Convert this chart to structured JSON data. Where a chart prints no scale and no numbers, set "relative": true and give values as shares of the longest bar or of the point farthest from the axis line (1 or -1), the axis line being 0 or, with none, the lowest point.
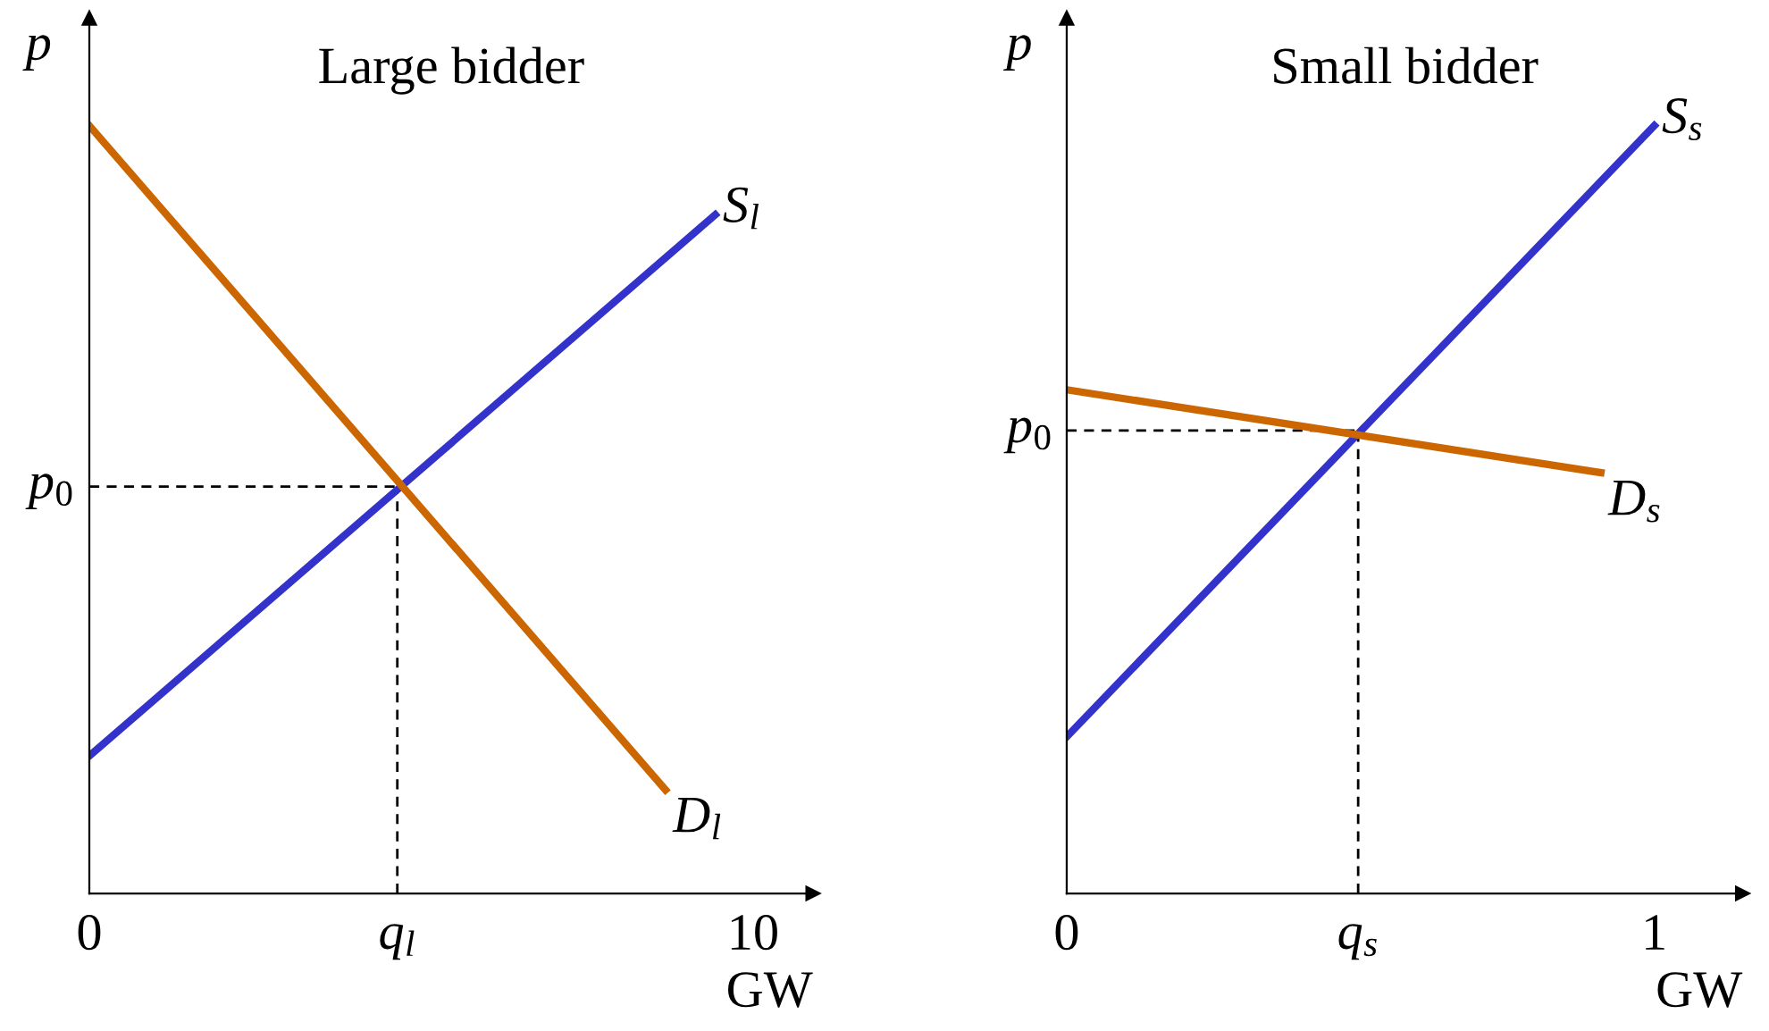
{
  "chart_data": [
    {
      "type": "line",
      "title": "Large bidder",
      "xlabel": "GW",
      "ylabel": "p",
      "relative": true,
      "xlim": [
        0,
        10.9
      ],
      "xticks": [
        0,
        {
          "value": 4.64,
          "label": "q$_{l}$"
        },
        10
      ],
      "series": [
        {
          "name": "S$_{l}$",
          "color": "#3333cc",
          "x": [
            0,
            9.43
          ],
          "values": [
            0.179,
            0.884
          ]
        },
        {
          "name": "D$_{l}$",
          "color": "#cc6600",
          "x": [
            0,
            8.68
          ],
          "values": [
            1,
            0.135
          ]
        }
      ],
      "ref_lines": [
        {
          "axis": "y",
          "value": 0.53,
          "label": "p$_{0}$",
          "line_style": "dashed",
          "color": "#000000"
        },
        {
          "axis": "x",
          "value": 4.64,
          "line_style": "dashed",
          "color": "#000000"
        }
      ]
    },
    {
      "type": "line",
      "title": "Small bidder",
      "xlabel": "GW",
      "ylabel": "p",
      "relative": true,
      "xlim": [
        0,
        1.15
      ],
      "xticks": [
        0,
        {
          "value": 0.496,
          "label": "q$_{s}$"
        },
        1
      ],
      "series": [
        {
          "name": "S$_{s}$",
          "color": "#3333cc",
          "x": [
            0,
            1.0
          ],
          "values": [
            0.204,
            1
          ]
        },
        {
          "name": "D$_{s}$",
          "color": "#cc6600",
          "x": [
            0,
            0.909
          ],
          "values": [
            0.656,
            0.548
          ]
        }
      ],
      "ref_lines": [
        {
          "axis": "y",
          "value": 0.603,
          "label": "p$_{0}$",
          "line_style": "dashed",
          "color": "#000000"
        },
        {
          "axis": "x",
          "value": 0.496,
          "line_style": "dashed",
          "color": "#000000"
        }
      ]
    }
  ]
}
